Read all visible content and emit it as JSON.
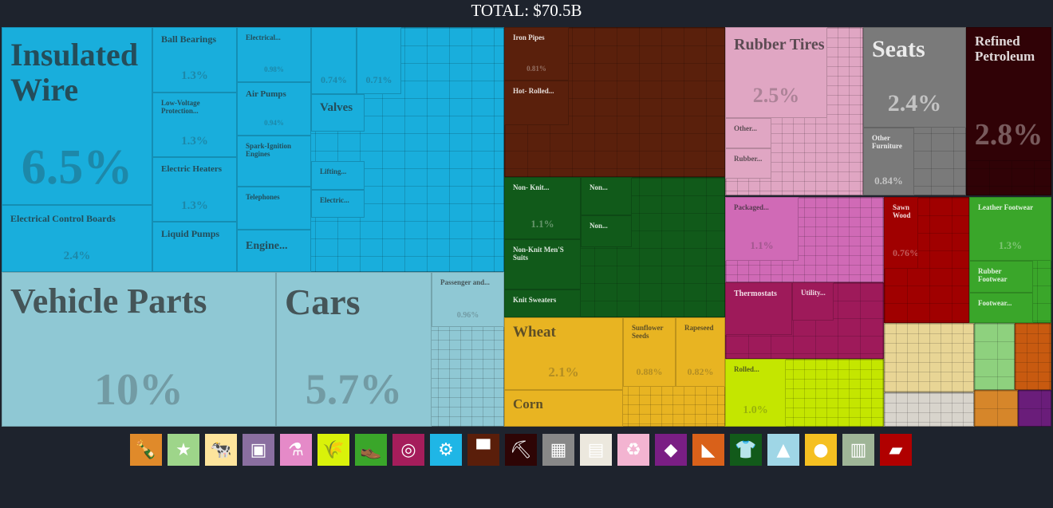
{
  "title": "TOTAL: $70.5B",
  "chart_data": {
    "type": "treemap",
    "title": "TOTAL: $70.5B",
    "items": {
      "insulated_wire": {
        "label": "Insulated Wire",
        "pct": "6.5%",
        "color": "#19aedc"
      },
      "electrical_control_boards": {
        "label": "Electrical Control Boards",
        "pct": "2.4%"
      },
      "ball_bearings": {
        "label": "Ball Bearings",
        "pct": "1.3%"
      },
      "low_voltage": {
        "label": "Low-Voltage Protection...",
        "pct": "1.3%"
      },
      "electric_heaters": {
        "label": "Electric Heaters",
        "pct": "1.3%"
      },
      "liquid_pumps": {
        "label": "Liquid Pumps"
      },
      "electrical": {
        "label": "Electrical...",
        "pct": "0.98%"
      },
      "air_pumps": {
        "label": "Air Pumps",
        "pct": "0.94%"
      },
      "spark_ignition": {
        "label": "Spark-Ignition Engines"
      },
      "telephones": {
        "label": "Telephones"
      },
      "engine": {
        "label": "Engine..."
      },
      "unl_074": {
        "pct": "0.74%"
      },
      "unl_071": {
        "pct": "0.71%"
      },
      "valves": {
        "label": "Valves"
      },
      "lifting": {
        "label": "Lifting..."
      },
      "electric2": {
        "label": "Electric..."
      },
      "vehicle_parts": {
        "label": "Vehicle Parts",
        "pct": "10%",
        "color": "#8fc8d4"
      },
      "cars": {
        "label": "Cars",
        "pct": "5.7%"
      },
      "passenger": {
        "label": "Passenger and...",
        "pct": "0.96%"
      },
      "iron_pipes": {
        "label": "Iron Pipes",
        "pct": "0.81%",
        "color": "#5a200c"
      },
      "hot_rolled": {
        "label": "Hot- Rolled..."
      },
      "non_knit": {
        "label": "Non- Knit...",
        "pct": "1.1%",
        "color": "#115a1a"
      },
      "non1": {
        "label": "Non..."
      },
      "non2": {
        "label": "Non..."
      },
      "non_knit_suits": {
        "label": "Non-Knit Men'S Suits"
      },
      "knit_sweaters": {
        "label": "Knit Sweaters"
      },
      "wheat": {
        "label": "Wheat",
        "pct": "2.1%",
        "color": "#e8b422"
      },
      "corn": {
        "label": "Corn"
      },
      "sunflower": {
        "label": "Sunflower Seeds",
        "pct": "0.88%"
      },
      "rapeseed": {
        "label": "Rapeseed",
        "pct": "0.82%"
      },
      "rubber_tires": {
        "label": "Rubber Tires",
        "pct": "2.5%",
        "color": "#e0a6c3"
      },
      "other_rubber": {
        "label": "Other..."
      },
      "rubber2": {
        "label": "Rubber..."
      },
      "seats": {
        "label": "Seats",
        "pct": "2.4%",
        "color": "#7a7a7a"
      },
      "other_furniture": {
        "label": "Other Furniture",
        "pct": "0.84%"
      },
      "refined_petroleum": {
        "label": "Refined Petroleum",
        "pct": "2.8%",
        "color": "#300206"
      },
      "packaged": {
        "label": "Packaged...",
        "pct": "1.1%",
        "color": "#d06ab6"
      },
      "thermostats": {
        "label": "Thermostats",
        "color": "#9e1a5a"
      },
      "utility": {
        "label": "Utility..."
      },
      "rolled": {
        "label": "Rolled...",
        "pct": "1.0%",
        "color": "#c4e600"
      },
      "sawn_wood": {
        "label": "Sawn Wood",
        "pct": "0.76%",
        "color": "#a00000"
      },
      "leather_footwear": {
        "label": "Leather Footwear",
        "pct": "1.3%",
        "color": "#3aa62a"
      },
      "rubber_footwear": {
        "label": "Rubber Footwear"
      },
      "footwear": {
        "label": "Footwear..."
      }
    }
  },
  "legend_icons": [
    {
      "name": "bottle-icon",
      "glyph": "🍾",
      "color": "#e08a2a"
    },
    {
      "name": "hide-icon",
      "glyph": "★",
      "color": "#9ed58a"
    },
    {
      "name": "cow-icon",
      "glyph": "🐄",
      "color": "#fde49c"
    },
    {
      "name": "picture-frame-icon",
      "glyph": "▣",
      "color": "#8a6fa0"
    },
    {
      "name": "flask-icon",
      "glyph": "⚗",
      "color": "#e58ac8"
    },
    {
      "name": "wheat-icon",
      "glyph": "🌾",
      "color": "#d9f20a"
    },
    {
      "name": "shoe-icon",
      "glyph": "👞",
      "color": "#3aa62a"
    },
    {
      "name": "gauge-icon",
      "glyph": "◎",
      "color": "#a51d5b"
    },
    {
      "name": "gears-icon",
      "glyph": "⚙",
      "color": "#1fb6e6"
    },
    {
      "name": "anvil-icon",
      "glyph": "▀",
      "color": "#5a1e0a"
    },
    {
      "name": "pickaxe-icon",
      "glyph": "⛏",
      "color": "#2e0505"
    },
    {
      "name": "box-icon",
      "glyph": "▦",
      "color": "#888888"
    },
    {
      "name": "paper-icon",
      "glyph": "▤",
      "color": "#ece8de"
    },
    {
      "name": "recycle-icon",
      "glyph": "♻",
      "color": "#f3b4d1"
    },
    {
      "name": "diamond-icon",
      "glyph": "◆",
      "color": "#7a1e84"
    },
    {
      "name": "stone-icon",
      "glyph": "◣",
      "color": "#d9611a"
    },
    {
      "name": "shirt-icon",
      "glyph": "👕",
      "color": "#125a1a"
    },
    {
      "name": "road-icon",
      "glyph": "▲",
      "color": "#9fd6e6"
    },
    {
      "name": "tomato-icon",
      "glyph": "●",
      "color": "#f5c021"
    },
    {
      "name": "crate-icon",
      "glyph": "▥",
      "color": "#9fb597"
    },
    {
      "name": "wood-plank-icon",
      "glyph": "▰",
      "color": "#b00000"
    }
  ]
}
